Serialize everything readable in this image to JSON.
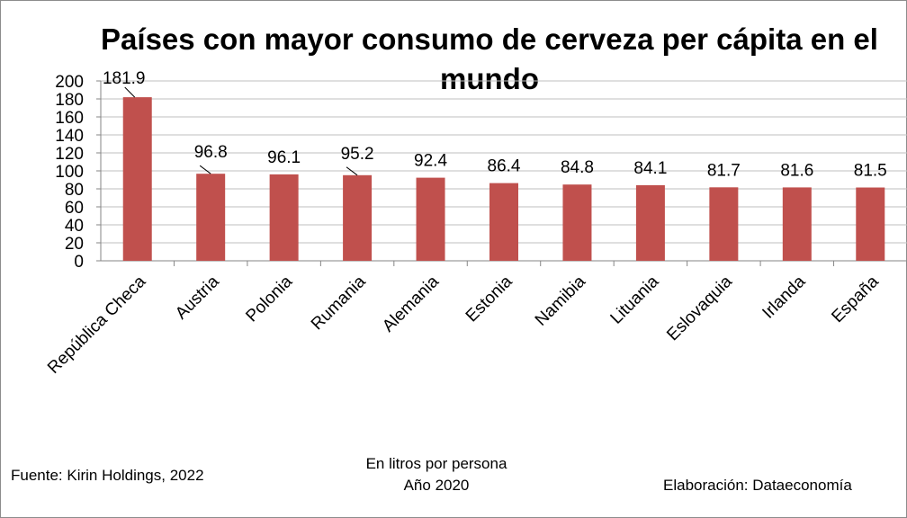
{
  "chart_data": {
    "type": "bar",
    "title_line_1": "Países con mayor consumo de cerveza per cápita en el",
    "title_line_2": "mundo",
    "categories": [
      "República Checa",
      "Austria",
      "Polonia",
      "Rumania",
      "Alemania",
      "Estonia",
      "Namibia",
      "Lituania",
      "Eslovaquia",
      "Irlanda",
      "España"
    ],
    "values": [
      181.9,
      96.8,
      96.1,
      95.2,
      92.4,
      86.4,
      84.8,
      84.1,
      81.7,
      81.6,
      81.5
    ],
    "value_labels": [
      "181.9",
      "96.8",
      "96.1",
      "95.2",
      "92.4",
      "86.4",
      "84.8",
      "84.1",
      "81.7",
      "81.6",
      "81.5"
    ],
    "ylim": [
      0,
      200
    ],
    "yticks": [
      0,
      20,
      40,
      60,
      80,
      100,
      120,
      140,
      160,
      180,
      200
    ],
    "grid": true,
    "bar_color": "#c0504d",
    "grid_color": "#bfbfbf",
    "unit_note": "En litros por persona",
    "year_note": "Año 2020"
  },
  "footer": {
    "source": "Fuente:  Kirin Holdings, 2022",
    "credit": "Elaboración: Dataeconomía"
  }
}
